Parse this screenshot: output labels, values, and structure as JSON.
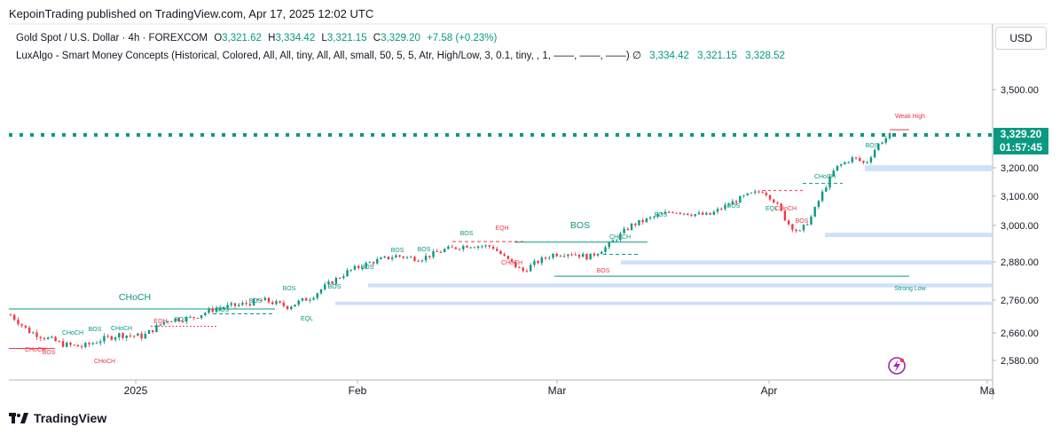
{
  "header": {
    "publisher_line": "KepoinTrading published on TradingView.com, Apr 17, 2025 12:02 UTC"
  },
  "symbol": {
    "name": "Gold Spot / U.S. Dollar · 4h · FOREXCOM",
    "open_label": "O",
    "open": "3,321.62",
    "high_label": "H",
    "high": "3,334.42",
    "low_label": "L",
    "low": "3,321.15",
    "close_label": "C",
    "close": "3,329.20",
    "change": "+7.58 (+0.23%)"
  },
  "indicator": {
    "text": "LuxAlgo - Smart Money Concepts (Historical, Colored, All, All, tiny, All, All, small, 50, 5, 5, Atr, High/Low, 3, 0.1, tiny, , 1, ——, ——, ——) ∅",
    "v1": "3,334.42",
    "v2": "3,321.15",
    "v3": "3,328.52"
  },
  "currency_button": "USD",
  "last_price": {
    "price": "3,329.20",
    "countdown": "01:57:45"
  },
  "colors": {
    "bull": "#089981",
    "bear": "#f23645",
    "zone": "#cfe0fb",
    "tag": "#089981"
  },
  "footer": {
    "brand": "TradingView",
    "logo_icon": "tradingview-logo-icon"
  },
  "chart_data": {
    "type": "candlestick",
    "y_ticks": [
      "3,500.00",
      "3,329.20",
      "3,200.00",
      "3,100.00",
      "3,000.00",
      "2,880.00",
      "2,760.00",
      "2,660.00",
      "2,580.00"
    ],
    "y_tick_values": [
      3500,
      3329.2,
      3200,
      3100,
      3000,
      2880,
      2760,
      2660,
      2580
    ],
    "x_ticks": [
      "2025",
      "Feb",
      "Mar",
      "Apr",
      "Ma"
    ],
    "price_path": [
      [
        0,
        2715
      ],
      [
        3,
        2665
      ],
      [
        6,
        2645
      ],
      [
        9,
        2625
      ],
      [
        12,
        2620
      ],
      [
        15,
        2640
      ],
      [
        18,
        2655
      ],
      [
        22,
        2650
      ],
      [
        26,
        2700
      ],
      [
        30,
        2705
      ],
      [
        34,
        2735
      ],
      [
        38,
        2745
      ],
      [
        42,
        2760
      ],
      [
        46,
        2740
      ],
      [
        50,
        2770
      ],
      [
        52,
        2800
      ],
      [
        56,
        2850
      ],
      [
        60,
        2880
      ],
      [
        64,
        2900
      ],
      [
        68,
        2890
      ],
      [
        72,
        2920
      ],
      [
        76,
        2935
      ],
      [
        80,
        2930
      ],
      [
        82,
        2895
      ],
      [
        85,
        2850
      ],
      [
        87,
        2875
      ],
      [
        90,
        2905
      ],
      [
        93,
        2910
      ],
      [
        96,
        2895
      ],
      [
        99,
        2930
      ],
      [
        103,
        3000
      ],
      [
        107,
        3030
      ],
      [
        110,
        3050
      ],
      [
        113,
        3040
      ],
      [
        116,
        3035
      ],
      [
        119,
        3070
      ],
      [
        122,
        3100
      ],
      [
        125,
        3120
      ],
      [
        127,
        3080
      ],
      [
        129,
        3010
      ],
      [
        131,
        2975
      ],
      [
        133,
        3030
      ],
      [
        135,
        3120
      ],
      [
        137,
        3200
      ],
      [
        140,
        3240
      ],
      [
        142,
        3215
      ],
      [
        144,
        3290
      ],
      [
        146,
        3329
      ]
    ],
    "annotations": [
      {
        "text": "CHoCH",
        "color": "bull",
        "size": "large"
      },
      {
        "text": "CHoCH",
        "color": "bear"
      },
      {
        "text": "CHoCH",
        "color": "bull"
      },
      {
        "text": "BOS",
        "color": "bull"
      },
      {
        "text": "BOS",
        "color": "bear"
      },
      {
        "text": "CHoCH",
        "color": "bull"
      },
      {
        "text": "CHoCH",
        "color": "bear"
      },
      {
        "text": "EQH",
        "color": "bear"
      },
      {
        "text": "BOS",
        "color": "bull"
      },
      {
        "text": "BOS",
        "color": "bull"
      },
      {
        "text": "BOS",
        "color": "bull"
      },
      {
        "text": "BOS",
        "color": "bull"
      },
      {
        "text": "EQL",
        "color": "bull"
      },
      {
        "text": "BOS",
        "color": "bull"
      },
      {
        "text": "BOS",
        "color": "bull"
      },
      {
        "text": "BOS",
        "color": "bull"
      },
      {
        "text": "BOS",
        "color": "bull"
      },
      {
        "text": "EQH",
        "color": "bear"
      },
      {
        "text": "CHoCH",
        "color": "bear"
      },
      {
        "text": "BOS",
        "color": "bull",
        "size": "large"
      },
      {
        "text": "CHoCH",
        "color": "bull"
      },
      {
        "text": "BOS",
        "color": "bear"
      },
      {
        "text": "BOS",
        "color": "bull"
      },
      {
        "text": "BOS",
        "color": "bull"
      },
      {
        "text": "BOS",
        "color": "bull"
      },
      {
        "text": "EQL",
        "color": "bull"
      },
      {
        "text": "CHoCH",
        "color": "bear"
      },
      {
        "text": "CHoCH",
        "color": "bull"
      },
      {
        "text": "BOS",
        "color": "bear"
      },
      {
        "text": "BOS",
        "color": "bull"
      },
      {
        "text": "Weak High",
        "color": "bear"
      },
      {
        "text": "Strong Low",
        "color": "bull"
      }
    ]
  }
}
